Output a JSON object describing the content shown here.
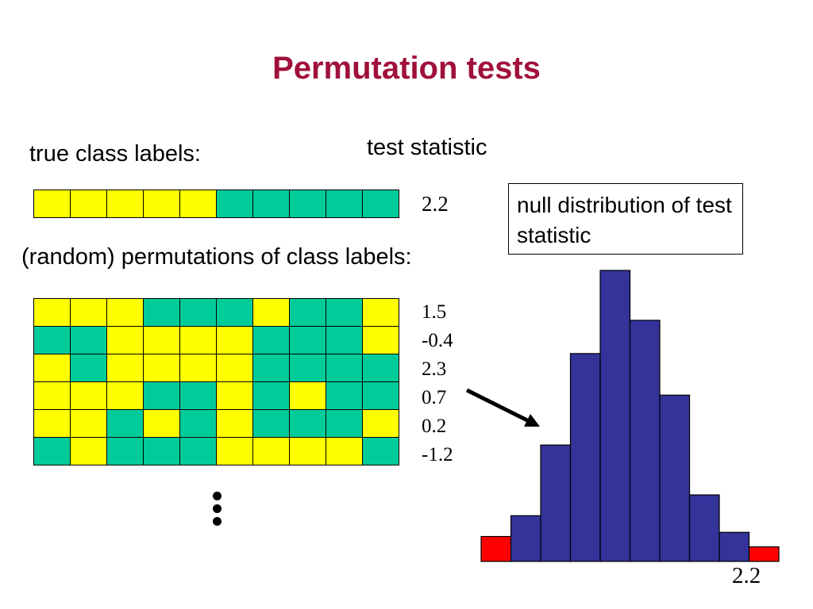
{
  "title": "Permutation tests",
  "true_labels_caption": "true class labels:",
  "test_statistic_caption": "test statistic",
  "permutations_caption": "(random) permutations of class labels:",
  "null_box_text": "null distribution of test statistic",
  "colors": {
    "class_a": "#ffff00",
    "class_b": "#00cc99",
    "bar": "#333399",
    "tail_bar": "#ff0000",
    "title": "#a0103a"
  },
  "true_labels": [
    "Y",
    "Y",
    "Y",
    "Y",
    "Y",
    "G",
    "G",
    "G",
    "G",
    "G"
  ],
  "true_statistic": "2.2",
  "permutations": [
    [
      "Y",
      "Y",
      "Y",
      "G",
      "G",
      "G",
      "Y",
      "G",
      "G",
      "Y"
    ],
    [
      "G",
      "G",
      "Y",
      "Y",
      "Y",
      "Y",
      "G",
      "G",
      "G",
      "Y"
    ],
    [
      "Y",
      "G",
      "Y",
      "Y",
      "Y",
      "Y",
      "G",
      "G",
      "G",
      "G"
    ],
    [
      "Y",
      "Y",
      "Y",
      "G",
      "G",
      "Y",
      "G",
      "Y",
      "G",
      "G"
    ],
    [
      "Y",
      "Y",
      "G",
      "Y",
      "G",
      "Y",
      "G",
      "G",
      "G",
      "Y"
    ],
    [
      "G",
      "Y",
      "G",
      "G",
      "G",
      "Y",
      "Y",
      "Y",
      "Y",
      "G"
    ]
  ],
  "permutation_statistics": [
    "1.5",
    "-0.4",
    "2.3",
    "0.7",
    "0.2",
    "-1.2"
  ],
  "chart_data": {
    "type": "bar",
    "title": "",
    "xlabel": "",
    "ylabel": "",
    "x_tick_labels": [
      "2.2"
    ],
    "values": [
      0.6,
      1.1,
      2.8,
      5.0,
      7.0,
      5.8,
      4.0,
      1.6,
      0.7,
      0.35
    ],
    "tail_bins": [
      0,
      9
    ],
    "ylim": [
      0,
      7.0
    ]
  }
}
